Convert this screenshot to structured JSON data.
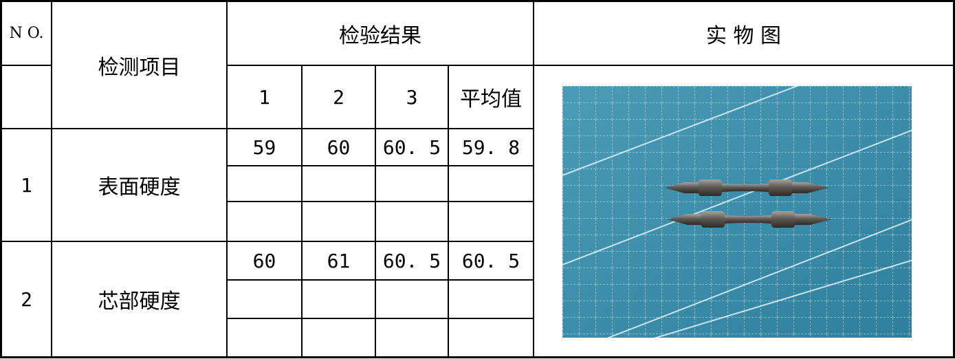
{
  "header": {
    "no_label": "N O.",
    "item_label": "检测项目",
    "results_label": "检验结果",
    "photo_label": "实 物 图",
    "col1": "1",
    "col2": "2",
    "col3": "3",
    "avg": "平均值"
  },
  "rows": [
    {
      "no": "1",
      "item": "表面硬度",
      "values": [
        [
          "59",
          "60",
          "60. 5",
          "59. 8"
        ],
        [
          "",
          "",
          "",
          ""
        ],
        [
          "",
          "",
          "",
          ""
        ]
      ]
    },
    {
      "no": "2",
      "item": "芯部硬度",
      "values": [
        [
          "60",
          "61",
          "60. 5",
          "60. 5"
        ],
        [
          "",
          "",
          "",
          ""
        ],
        [
          "",
          "",
          "",
          ""
        ]
      ]
    }
  ],
  "photo": {
    "icon": "screwdriver-bits-photo",
    "mat_color": "#3c8da9"
  }
}
